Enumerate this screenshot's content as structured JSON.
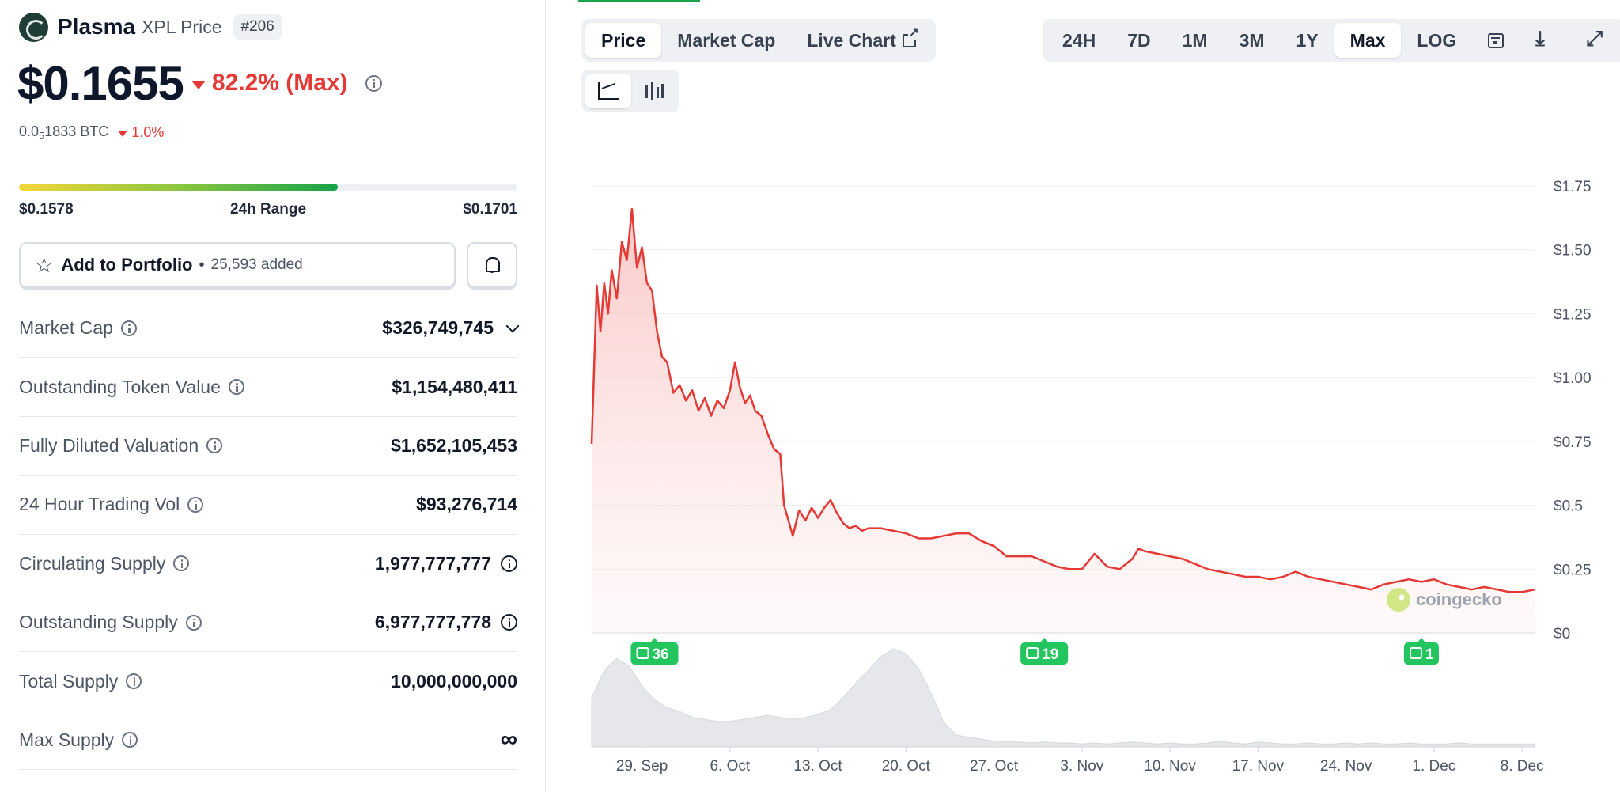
{
  "coin": {
    "name": "Plasma",
    "subtitle": "XPL Price",
    "rank": "#206",
    "price": "$0.1655",
    "change": "82.2% (Max)",
    "btc_price_prefix": "0.0",
    "btc_price_sub": "5",
    "btc_price_suffix": "1833 BTC",
    "btc_change": "1.0%"
  },
  "range": {
    "low": "$0.1578",
    "label": "24h Range",
    "high": "$0.1701",
    "fill_fraction": 0.64
  },
  "portfolio": {
    "label": "Add to Portfolio",
    "dot": "•",
    "count": "25,593 added"
  },
  "stats": [
    {
      "label": "Market Cap",
      "value": "$326,749,745"
    },
    {
      "label": "Outstanding Token Value",
      "value": "$1,154,480,411"
    },
    {
      "label": "Fully Diluted Valuation",
      "value": "$1,652,105,453"
    },
    {
      "label": "24 Hour Trading Vol",
      "value": "$93,276,714"
    },
    {
      "label": "Circulating Supply",
      "value": "1,977,777,777"
    },
    {
      "label": "Outstanding Supply",
      "value": "6,977,777,778"
    },
    {
      "label": "Total Supply",
      "value": "10,000,000,000"
    },
    {
      "label": "Max Supply",
      "value": "∞"
    }
  ],
  "chart_tabs": {
    "price": "Price",
    "market_cap": "Market Cap",
    "live_chart": "Live Chart"
  },
  "ranges": [
    "24H",
    "7D",
    "1M",
    "3M",
    "1Y",
    "Max",
    "LOG"
  ],
  "active_range": "Max",
  "colors": {
    "line": "#e53935",
    "positive": "#16a34a",
    "negative": "#e53935"
  },
  "watermark": "coingecko",
  "chart_data": {
    "type": "line",
    "ylim": [
      0,
      1.75
    ],
    "y_ticks": [
      "$0",
      "$0.25",
      "$0.5",
      "$0.75",
      "$1.00",
      "$1.25",
      "$1.50",
      "$1.75"
    ],
    "y_tick_values": [
      0,
      0.25,
      0.5,
      0.75,
      1.0,
      1.25,
      1.5,
      1.75
    ],
    "x_ticks": [
      "29. Sep",
      "6. Oct",
      "13. Oct",
      "20. Oct",
      "27. Oct",
      "3. Nov",
      "10. Nov",
      "17. Nov",
      "24. Nov",
      "1. Dec",
      "8. Dec"
    ],
    "x_tick_days": [
      4,
      11,
      18,
      25,
      32,
      39,
      46,
      53,
      60,
      67,
      74
    ],
    "x_range_days": [
      0,
      75
    ],
    "series": [
      {
        "x": [
          0,
          0.2,
          0.4,
          0.7,
          1.0,
          1.3,
          1.6,
          2.0,
          2.4,
          2.8,
          3.2,
          3.6,
          4.0,
          4.4,
          4.8,
          5.2,
          5.6,
          6.0,
          6.5,
          7.0,
          7.5,
          8.0,
          8.5,
          9.0,
          9.5,
          10.0,
          10.5,
          11.0,
          11.4,
          11.8,
          12.2,
          12.6,
          13.0,
          13.5,
          14.0,
          14.5,
          15.0,
          15.3,
          15.6,
          16.0,
          16.5,
          17.0,
          17.5,
          18.0,
          18.5,
          19.0,
          19.5,
          20.0,
          20.5,
          21.0,
          21.5,
          22.0,
          23.0,
          24.0,
          25.0,
          26.0,
          27.0,
          28.0,
          29.0,
          30.0,
          31.0,
          32.0,
          33.0,
          34.0,
          35.0,
          36.0,
          37.0,
          38.0,
          39.0,
          40.0,
          41.0,
          42.0,
          43.0,
          43.5,
          44.0,
          45.0,
          46.0,
          47.0,
          48.0,
          49.0,
          50.0,
          51.0,
          52.0,
          53.0,
          54.0,
          55.0,
          56.0,
          57.0,
          58.0,
          59.0,
          60.0,
          61.0,
          62.0,
          63.0,
          64.0,
          65.0,
          66.0,
          67.0,
          68.0,
          69.0,
          70.0,
          71.0,
          72.0,
          73.0,
          74.0,
          75.0
        ],
        "y": [
          0.74,
          1.05,
          1.36,
          1.18,
          1.37,
          1.25,
          1.42,
          1.31,
          1.53,
          1.46,
          1.66,
          1.43,
          1.51,
          1.37,
          1.34,
          1.18,
          1.08,
          1.06,
          0.94,
          0.97,
          0.91,
          0.95,
          0.87,
          0.92,
          0.85,
          0.91,
          0.88,
          0.95,
          1.06,
          0.96,
          0.9,
          0.93,
          0.87,
          0.85,
          0.78,
          0.72,
          0.7,
          0.5,
          0.45,
          0.38,
          0.48,
          0.44,
          0.49,
          0.45,
          0.49,
          0.52,
          0.47,
          0.43,
          0.41,
          0.42,
          0.4,
          0.41,
          0.41,
          0.4,
          0.39,
          0.37,
          0.37,
          0.38,
          0.39,
          0.39,
          0.36,
          0.34,
          0.3,
          0.3,
          0.3,
          0.28,
          0.26,
          0.25,
          0.25,
          0.31,
          0.26,
          0.25,
          0.29,
          0.33,
          0.32,
          0.31,
          0.3,
          0.29,
          0.27,
          0.25,
          0.24,
          0.23,
          0.22,
          0.22,
          0.21,
          0.22,
          0.24,
          0.22,
          0.21,
          0.2,
          0.19,
          0.18,
          0.17,
          0.19,
          0.2,
          0.21,
          0.2,
          0.21,
          0.19,
          0.18,
          0.17,
          0.18,
          0.17,
          0.16,
          0.16,
          0.17
        ]
      }
    ],
    "volume_profile": [
      0.5,
      0.78,
      0.9,
      0.82,
      0.62,
      0.48,
      0.4,
      0.36,
      0.3,
      0.28,
      0.26,
      0.26,
      0.28,
      0.3,
      0.32,
      0.3,
      0.28,
      0.3,
      0.33,
      0.38,
      0.5,
      0.65,
      0.78,
      0.92,
      1.0,
      0.95,
      0.8,
      0.55,
      0.25,
      0.12,
      0.1,
      0.08,
      0.06,
      0.05,
      0.05,
      0.04,
      0.05,
      0.04,
      0.04,
      0.03,
      0.04,
      0.03,
      0.04,
      0.05,
      0.04,
      0.03,
      0.04,
      0.03,
      0.03,
      0.04,
      0.06,
      0.04,
      0.03,
      0.05,
      0.04,
      0.03,
      0.03,
      0.04,
      0.03,
      0.03,
      0.04,
      0.03,
      0.04,
      0.03,
      0.03,
      0.04,
      0.03,
      0.03,
      0.03,
      0.04,
      0.03,
      0.03,
      0.03,
      0.03,
      0.03,
      0.03
    ],
    "news_markers": [
      {
        "label": "36",
        "day": 5
      },
      {
        "label": "19",
        "day": 36
      },
      {
        "label": "1",
        "day": 66
      }
    ]
  }
}
